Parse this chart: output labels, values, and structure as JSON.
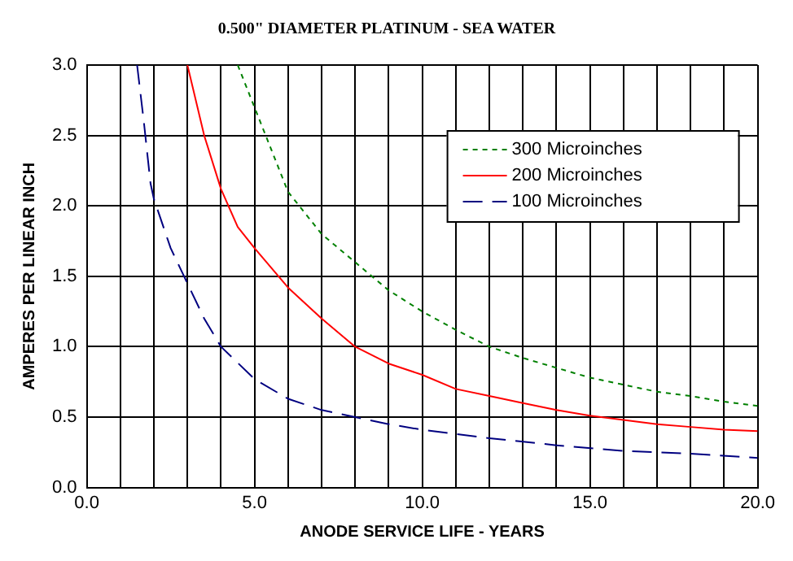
{
  "chart_data": {
    "type": "line",
    "title": "0.500\" DIAMETER PLATINUM - SEA WATER",
    "xlabel": "ANODE SERVICE LIFE - YEARS",
    "ylabel": "AMPERES PER LINEAR INCH",
    "xlim": [
      0,
      20
    ],
    "ylim": [
      0,
      3
    ],
    "xticks": [
      {
        "value": 0,
        "label": "0.0"
      },
      {
        "value": 1,
        "label": null
      },
      {
        "value": 2,
        "label": null
      },
      {
        "value": 3,
        "label": null
      },
      {
        "value": 4,
        "label": null
      },
      {
        "value": 5,
        "label": "5.0"
      },
      {
        "value": 6,
        "label": null
      },
      {
        "value": 7,
        "label": null
      },
      {
        "value": 8,
        "label": null
      },
      {
        "value": 9,
        "label": null
      },
      {
        "value": 10,
        "label": "10.0"
      },
      {
        "value": 11,
        "label": null
      },
      {
        "value": 12,
        "label": null
      },
      {
        "value": 13,
        "label": null
      },
      {
        "value": 14,
        "label": null
      },
      {
        "value": 15,
        "label": "15.0"
      },
      {
        "value": 16,
        "label": null
      },
      {
        "value": 17,
        "label": null
      },
      {
        "value": 18,
        "label": null
      },
      {
        "value": 19,
        "label": null
      },
      {
        "value": 20,
        "label": "20.0"
      }
    ],
    "yticks": [
      {
        "value": 0,
        "label": "0.0"
      },
      {
        "value": 0.5,
        "label": "0.5"
      },
      {
        "value": 1,
        "label": "1.0"
      },
      {
        "value": 1.5,
        "label": "1.5"
      },
      {
        "value": 2,
        "label": "2.0"
      },
      {
        "value": 2.5,
        "label": "2.5"
      },
      {
        "value": 3,
        "label": "3.0"
      }
    ],
    "grid": true,
    "legend": "top right",
    "marker": "none",
    "series": [
      {
        "name": "300 Microinches",
        "color": "#008000",
        "line_style": "dotted",
        "x": [
          4.5,
          5,
          5.5,
          6,
          7,
          8,
          9,
          10,
          11,
          12,
          13,
          14,
          15,
          16,
          17,
          18,
          19,
          20
        ],
        "values": [
          3.0,
          2.7,
          2.4,
          2.1,
          1.8,
          1.6,
          1.4,
          1.25,
          1.12,
          1.0,
          0.92,
          0.85,
          0.78,
          0.73,
          0.68,
          0.65,
          0.61,
          0.58
        ]
      },
      {
        "name": "200 Microinches",
        "color": "#ff0000",
        "line_style": "solid",
        "x": [
          3,
          3.5,
          4,
          4.5,
          5,
          6,
          7,
          8,
          9,
          10,
          11,
          12,
          13,
          14,
          15,
          16,
          17,
          18,
          19,
          20
        ],
        "values": [
          3.0,
          2.5,
          2.12,
          1.85,
          1.7,
          1.42,
          1.2,
          1.0,
          0.88,
          0.8,
          0.7,
          0.65,
          0.6,
          0.55,
          0.51,
          0.48,
          0.45,
          0.43,
          0.41,
          0.4
        ]
      },
      {
        "name": "100 Microinches",
        "color": "#000080",
        "line_style": "dashed",
        "x": [
          1.5,
          1.7,
          1.9,
          2,
          2.5,
          3,
          3.5,
          4,
          5,
          6,
          7,
          8,
          9,
          10,
          12,
          14,
          16,
          18,
          20
        ],
        "values": [
          3.0,
          2.6,
          2.16,
          2.05,
          1.7,
          1.45,
          1.2,
          1.0,
          0.77,
          0.63,
          0.55,
          0.5,
          0.45,
          0.41,
          0.35,
          0.3,
          0.26,
          0.24,
          0.21
        ]
      }
    ]
  }
}
